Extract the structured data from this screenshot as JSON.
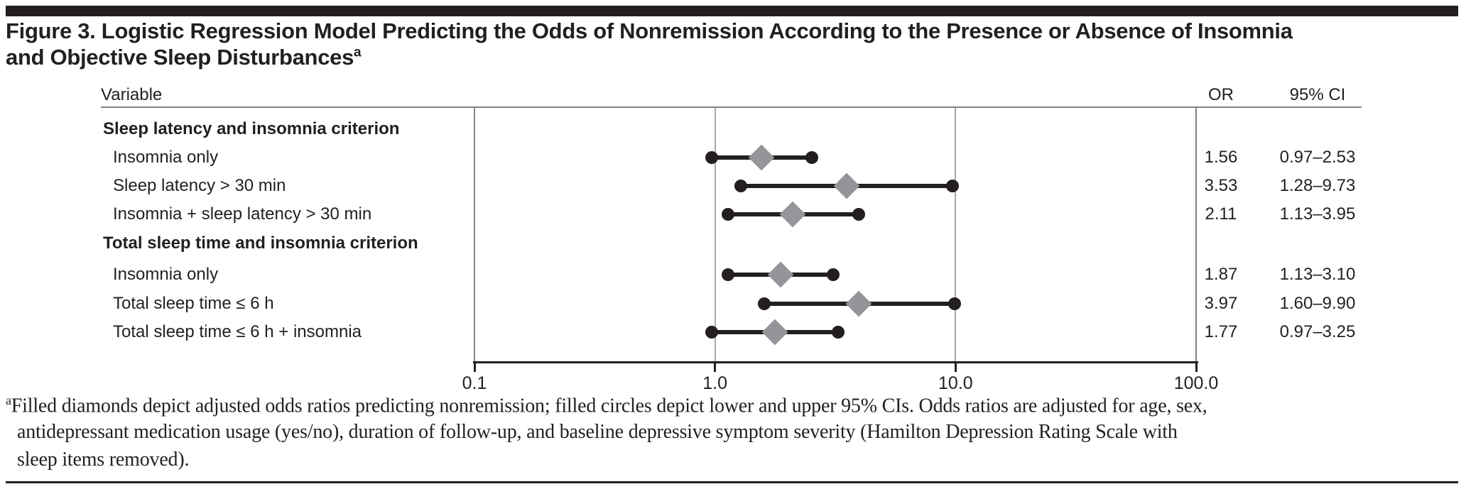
{
  "title": {
    "line1": "Figure 3. Logistic Regression Model Predicting the Odds of Nonremission According to the Presence or Absence of Insomnia",
    "line2": "and Objective Sleep Disturbances",
    "superscript": "a"
  },
  "table": {
    "variable_header": "Variable",
    "or_header": "OR",
    "ci_header": "95% CI"
  },
  "chart_data": {
    "type": "scatter",
    "subtype": "forest-plot",
    "xscale": "log",
    "xlim": [
      0.1,
      100.0
    ],
    "xtick_labels": [
      "0.1",
      "1.0",
      "10.0",
      "100.0"
    ],
    "xtick_values": [
      0.1,
      1.0,
      10.0,
      100.0
    ],
    "gridlines_at": [
      1.0,
      10.0
    ],
    "legend_position": "none",
    "rows": [
      {
        "label": "Sleep latency and insomnia criterion",
        "group": true
      },
      {
        "label": "Insomnia only",
        "or": 1.56,
        "ci_low": 0.97,
        "ci_high": 2.53,
        "or_text": "1.56",
        "ci_text": "0.97–2.53"
      },
      {
        "label": "Sleep latency > 30 min",
        "or": 3.53,
        "ci_low": 1.28,
        "ci_high": 9.73,
        "or_text": "3.53",
        "ci_text": "1.28–9.73"
      },
      {
        "label": "Insomnia + sleep latency > 30 min",
        "or": 2.11,
        "ci_low": 1.13,
        "ci_high": 3.95,
        "or_text": "2.11",
        "ci_text": "1.13–3.95"
      },
      {
        "label": "Total sleep time and insomnia criterion",
        "group": true
      },
      {
        "label": "Insomnia only",
        "or": 1.87,
        "ci_low": 1.13,
        "ci_high": 3.1,
        "or_text": "1.87",
        "ci_text": "1.13–3.10"
      },
      {
        "label": "Total sleep time ≤ 6 h",
        "or": 3.97,
        "ci_low": 1.6,
        "ci_high": 9.9,
        "or_text": "3.97",
        "ci_text": "1.60–9.90"
      },
      {
        "label": "Total sleep time ≤ 6 h + insomnia",
        "or": 1.77,
        "ci_low": 0.97,
        "ci_high": 3.25,
        "or_text": "1.77",
        "ci_text": "0.97–3.25"
      }
    ],
    "colors": {
      "diamond": "#939598",
      "circle": "#231f20",
      "line": "#231f20",
      "gridline": "#a7a9ac",
      "border": "#808285",
      "ink": "#231f20"
    }
  },
  "footnote": {
    "marker": "a",
    "lines": [
      "Filled diamonds depict adjusted odds ratios predicting nonremission; filled circles depict lower and upper 95% CIs. Odds ratios are adjusted for age, sex,",
      "antidepressant medication usage (yes/no), duration of follow-up, and baseline depressive symptom severity (Hamilton Depression Rating Scale with",
      "sleep items removed)."
    ]
  }
}
